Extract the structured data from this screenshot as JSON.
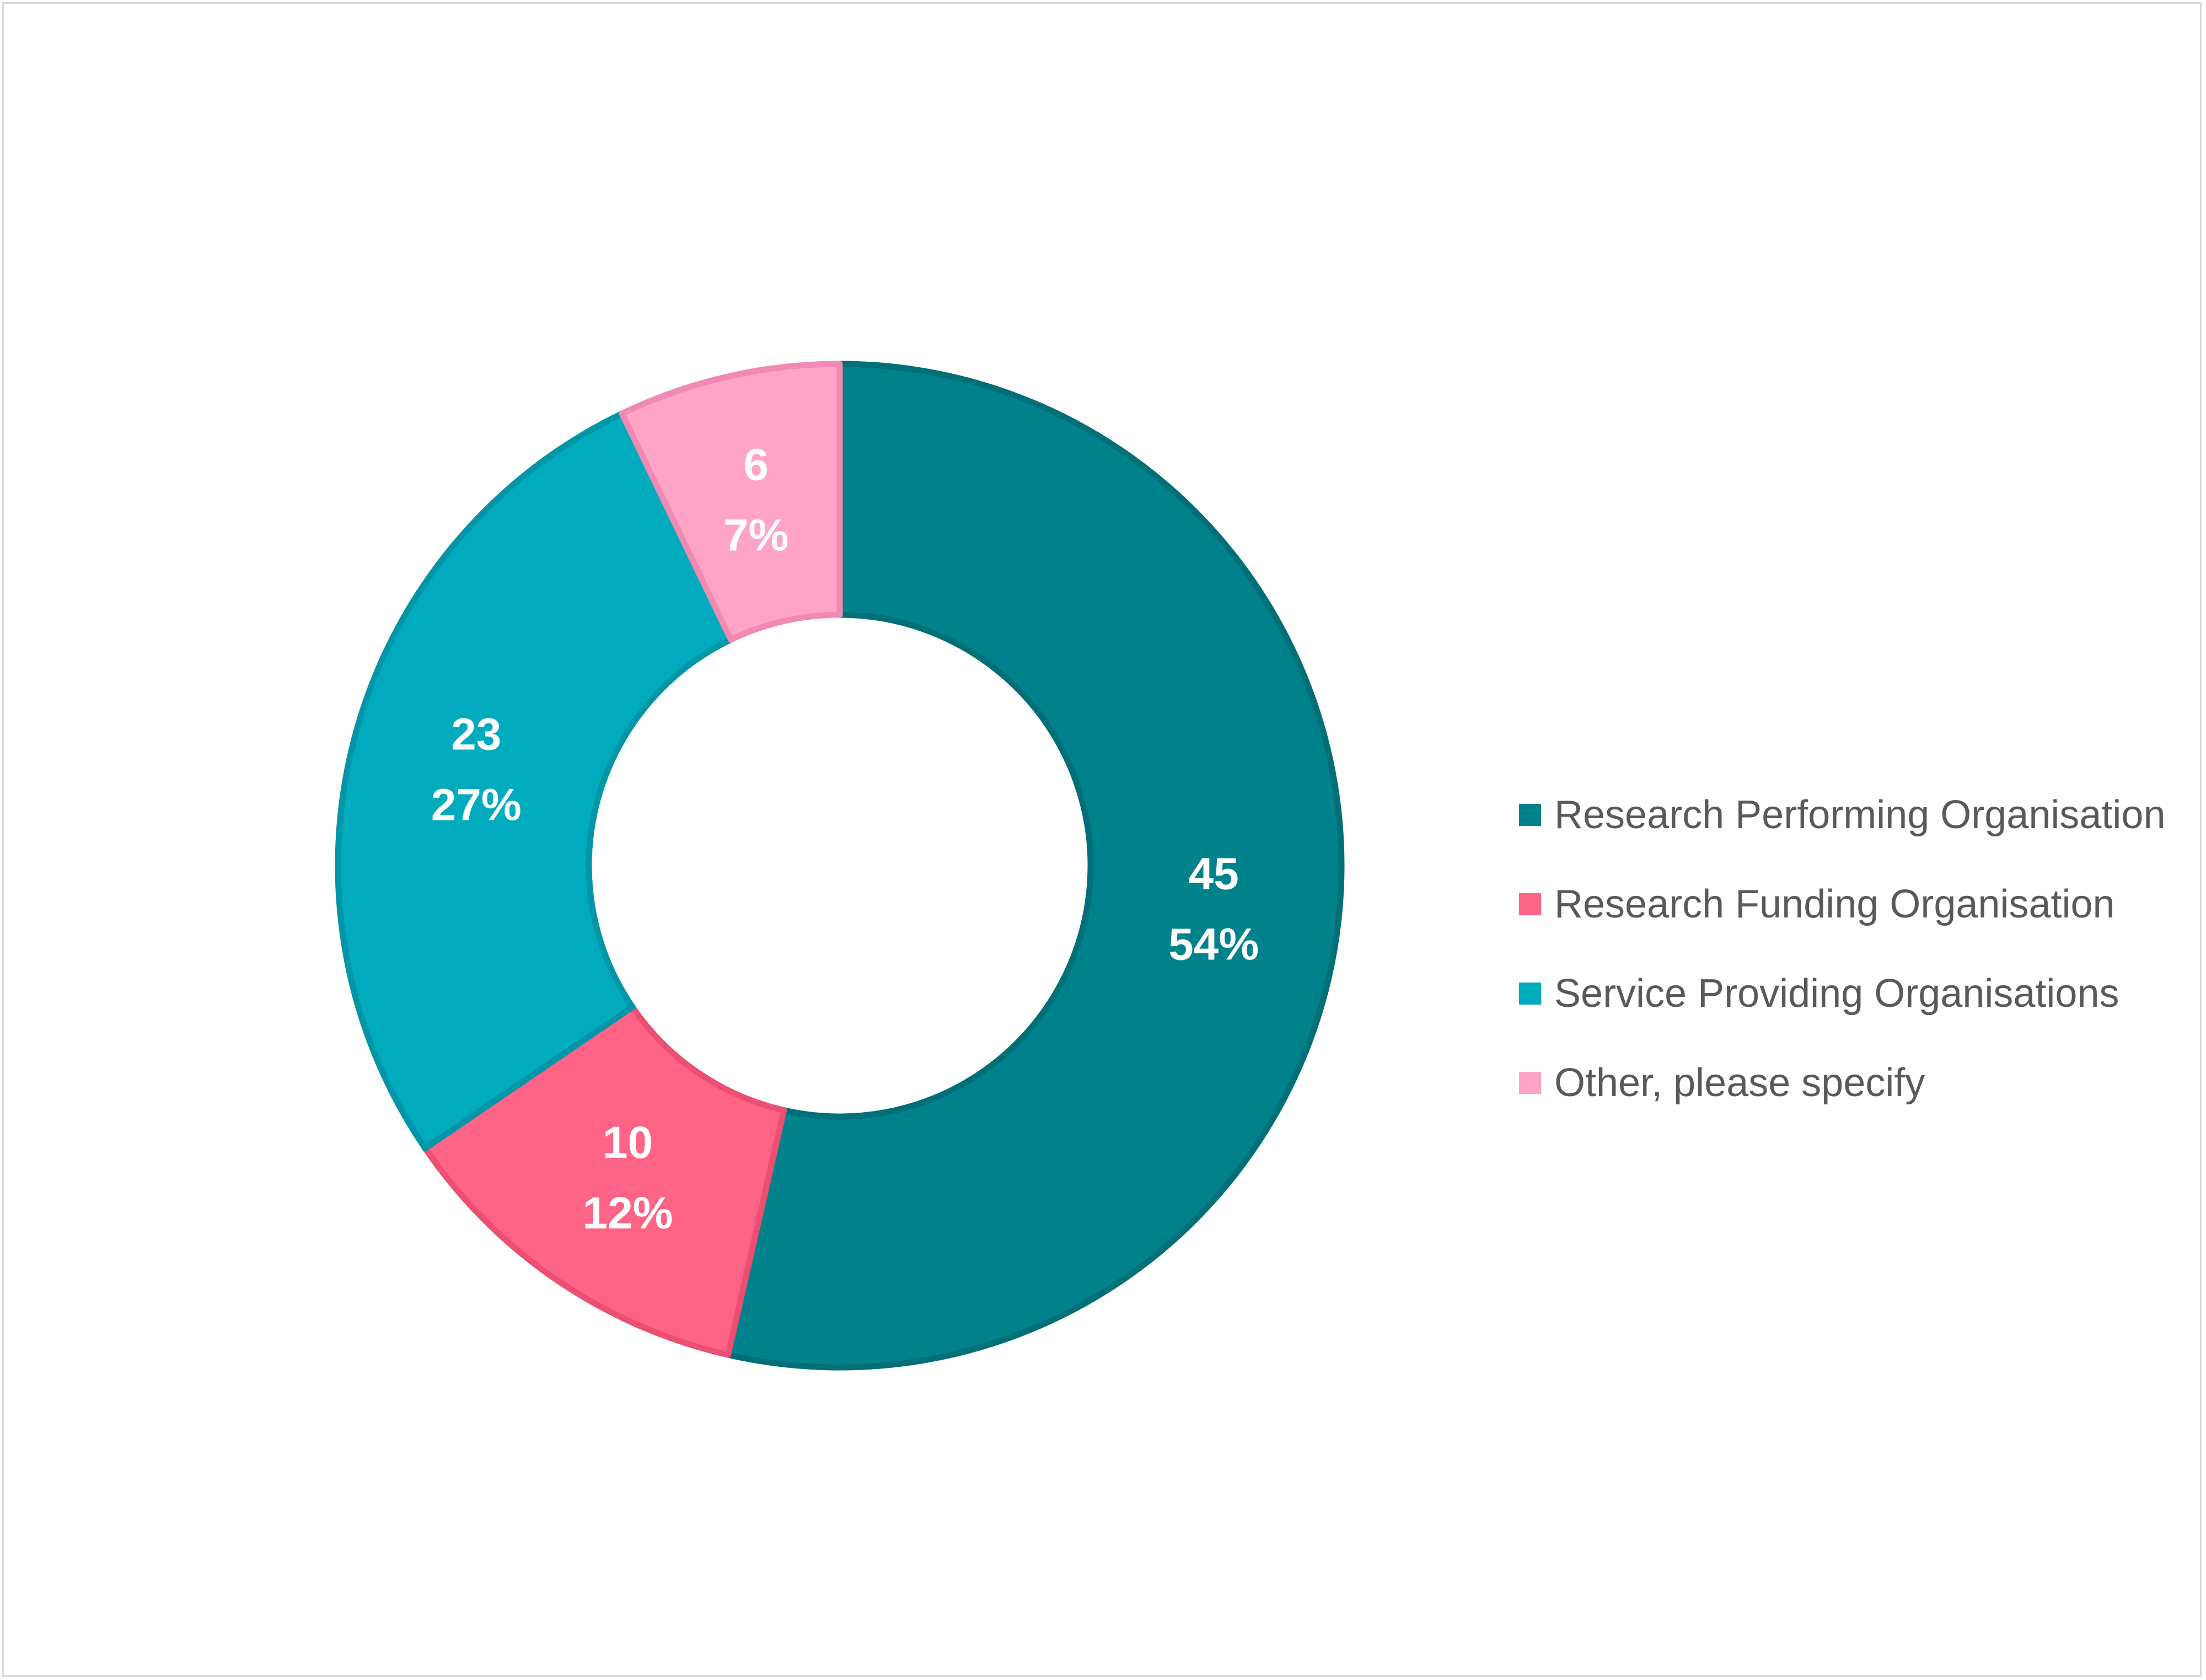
{
  "chart_data": {
    "type": "pie",
    "subtype": "donut",
    "categories": [
      "Research Performing Organisation",
      "Research Funding Organisation",
      "Service Providing Organisations",
      "Other, please specify"
    ],
    "values": [
      45,
      10,
      23,
      6
    ],
    "percent_labels": [
      "54%",
      "12%",
      "27%",
      "7%"
    ],
    "colors": [
      "#00828c",
      "#ff6385",
      "#00abbd",
      "#ffa3c7"
    ],
    "border_colors": [
      "#006f78",
      "#ec4f72",
      "#0095a7",
      "#f08ab3"
    ],
    "legend_position": "right",
    "title": ""
  }
}
